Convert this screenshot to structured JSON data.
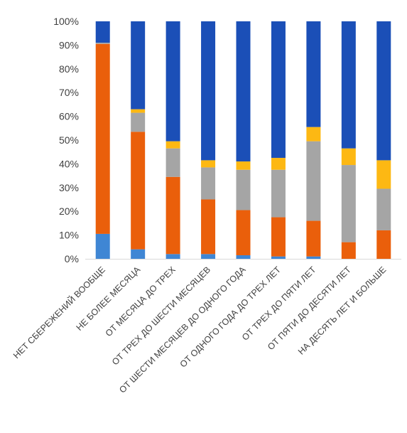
{
  "chart_data": {
    "type": "bar",
    "stacked": true,
    "percent": true,
    "ylim": [
      0,
      100
    ],
    "yticks": [
      "0%",
      "10%",
      "20%",
      "30%",
      "40%",
      "50%",
      "60%",
      "70%",
      "80%",
      "90%",
      "100%"
    ],
    "grid": false,
    "legend": "none",
    "categories": [
      "НЕТ СБЕРЕЖЕНИЙ ВООБЩЕ",
      "НЕ БОЛЕЕ МЕСЯЦА",
      "ОТ МЕСЯЦА ДО ТРЕХ",
      "ОТ ТРЕХ ДО ШЕСТИ МЕСЯЦЕВ",
      "ОТ ШЕСТИ МЕСЯЦЕВ ДО ОДНОГО ГОДА",
      "ОТ ОДНОГО ГОДА ДО ТРЕХ ЛЕТ",
      "ОТ ТРЕХ ДО ПЯТИ ЛЕТ",
      "ОТ ПЯТИ ДО ДЕСЯТИ ЛЕТ",
      "НА ДЕСЯТЬ ЛЕТ И БОЛЬШЕ"
    ],
    "series": [
      {
        "color": "#3f86d4",
        "values": [
          10.5,
          4,
          2,
          2,
          1.5,
          1,
          1,
          0,
          0
        ]
      },
      {
        "color": "#ea5f0b",
        "values": [
          80,
          49.5,
          32.5,
          23,
          19,
          16.5,
          15,
          7,
          12
        ]
      },
      {
        "color": "#a5a5a5",
        "values": [
          0.5,
          8,
          12,
          13.5,
          17,
          20,
          33.5,
          32.5,
          17.5
        ]
      },
      {
        "color": "#fdb813",
        "values": [
          0,
          1.5,
          3,
          3,
          3.5,
          5,
          6,
          7,
          12
        ]
      },
      {
        "color": "#1b4fb7",
        "values": [
          9,
          37,
          50.5,
          58.5,
          59,
          57.5,
          44.5,
          53.5,
          58.5
        ]
      }
    ]
  }
}
